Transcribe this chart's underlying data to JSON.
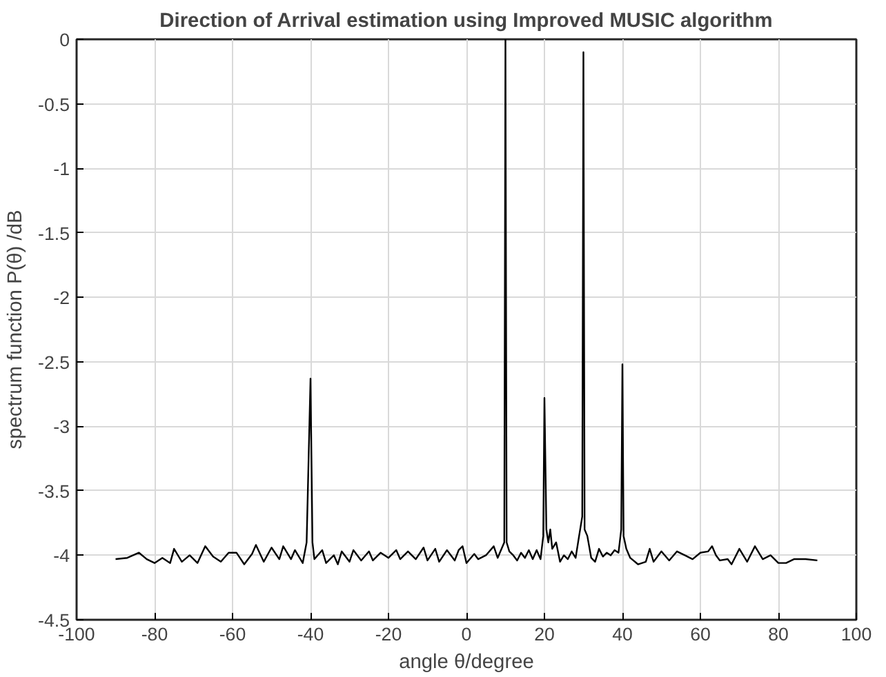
{
  "chart_data": {
    "type": "line",
    "title": "Direction of Arrival estimation using Improved MUSIC algorithm",
    "xlabel": "angle θ/degree",
    "ylabel": "spectrum function P(θ) /dB",
    "x": [
      -90,
      -87,
      -84,
      -82,
      -80,
      -78,
      -76,
      -75,
      -73,
      -71,
      -69,
      -67,
      -65,
      -63,
      -61,
      -59,
      -57,
      -55,
      -54,
      -52,
      -50,
      -48,
      -47,
      -45,
      -44,
      -42,
      -41,
      -40,
      -39.5,
      -39,
      -37,
      -36,
      -34,
      -33,
      -32,
      -30,
      -29,
      -27,
      -25,
      -24,
      -22,
      -20,
      -18,
      -17,
      -15,
      -13,
      -11,
      -10,
      -8,
      -7,
      -5,
      -3,
      -2,
      -1,
      0,
      2,
      3,
      5,
      7,
      8,
      9,
      9.7,
      10,
      10.3,
      11,
      12,
      13,
      14,
      15,
      16,
      17,
      18,
      19,
      19.7,
      20,
      20.5,
      21,
      21.5,
      22,
      23,
      24,
      25,
      26,
      27,
      28,
      29,
      29.7,
      30,
      30.3,
      31,
      32,
      33,
      34,
      35,
      36,
      37,
      38,
      39,
      39.7,
      40,
      40.3,
      41,
      42,
      44,
      46,
      47,
      48,
      50,
      52,
      54,
      56,
      58,
      60,
      62,
      63,
      64,
      65,
      67,
      68,
      70,
      72,
      74,
      76,
      78,
      80,
      82,
      84,
      87,
      90
    ],
    "series": [
      {
        "color": "#000000",
        "values": [
          -4.03,
          -4.02,
          -3.98,
          -4.03,
          -4.06,
          -4.02,
          -4.06,
          -3.95,
          -4.05,
          -4.0,
          -4.06,
          -3.93,
          -4.01,
          -4.05,
          -3.98,
          -3.98,
          -4.07,
          -3.99,
          -3.92,
          -4.05,
          -3.94,
          -4.03,
          -3.93,
          -4.03,
          -3.96,
          -4.06,
          -3.9,
          -2.63,
          -3.9,
          -4.03,
          -3.96,
          -4.06,
          -4.0,
          -4.07,
          -3.97,
          -4.05,
          -3.96,
          -4.04,
          -3.97,
          -4.04,
          -3.98,
          -4.02,
          -3.96,
          -4.03,
          -3.97,
          -4.03,
          -3.94,
          -4.04,
          -3.95,
          -4.05,
          -3.96,
          -4.04,
          -3.96,
          -3.93,
          -4.06,
          -3.99,
          -4.03,
          -4.0,
          -3.93,
          -4.02,
          -3.95,
          -3.9,
          0,
          -3.9,
          -3.97,
          -4.0,
          -4.04,
          -3.98,
          -4.02,
          -3.96,
          -4.03,
          -3.96,
          -4.03,
          -3.85,
          -2.78,
          -3.8,
          -3.9,
          -3.8,
          -3.95,
          -3.9,
          -4.05,
          -4.0,
          -4.03,
          -3.97,
          -4.02,
          -3.83,
          -3.7,
          -0.1,
          -3.8,
          -3.85,
          -4.02,
          -4.05,
          -3.95,
          -4.01,
          -3.98,
          -4.0,
          -3.96,
          -3.98,
          -3.8,
          -2.52,
          -3.85,
          -3.95,
          -4.02,
          -4.07,
          -4.05,
          -3.95,
          -4.05,
          -3.97,
          -4.04,
          -3.97,
          -4.0,
          -4.03,
          -3.98,
          -3.97,
          -3.93,
          -4.0,
          -4.04,
          -4.03,
          -4.07,
          -3.95,
          -4.05,
          -3.93,
          -4.03,
          -4.0,
          -4.06,
          -4.06,
          -4.03,
          -4.03,
          -4.04
        ]
      }
    ],
    "xlim": [
      -100,
      100
    ],
    "xticks": [
      -100,
      -80,
      -60,
      -40,
      -20,
      0,
      20,
      40,
      60,
      80,
      100
    ],
    "ylim": [
      -4.5,
      0
    ],
    "yticks": [
      -4.5,
      -4,
      -3.5,
      -3,
      -2.5,
      -2,
      -1.5,
      -1,
      -0.5,
      0
    ],
    "grid": true
  }
}
